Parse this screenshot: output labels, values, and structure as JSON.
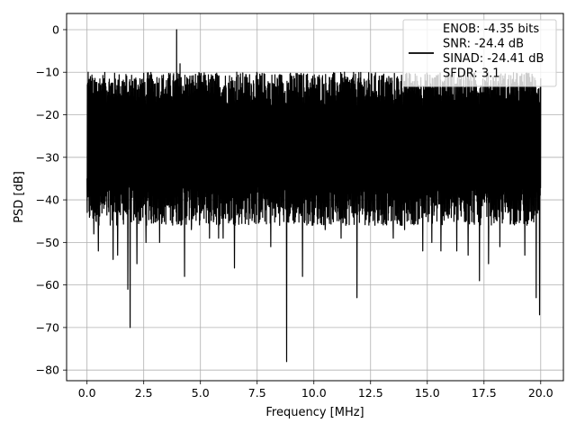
{
  "chart_data": {
    "type": "line",
    "title": "",
    "xlabel": "Frequency [MHz]",
    "ylabel": "PSD [dB]",
    "xlim": [
      -0.9,
      21.0
    ],
    "ylim": [
      -82.5,
      3.8
    ],
    "xticks": [
      0.0,
      2.5,
      5.0,
      7.5,
      10.0,
      12.5,
      15.0,
      17.5,
      20.0
    ],
    "xtick_labels": [
      "0.0",
      "2.5",
      "5.0",
      "7.5",
      "10.0",
      "12.5",
      "15.0",
      "17.5",
      "20.0"
    ],
    "yticks": [
      0,
      -10,
      -20,
      -30,
      -40,
      -50,
      -60,
      -70,
      -80
    ],
    "ytick_labels": [
      "0",
      "−10",
      "−20",
      "−30",
      "−40",
      "−50",
      "−60",
      "−70",
      "−80"
    ],
    "grid": true,
    "legend_position": "top-right",
    "line_color": "#000000",
    "series": [
      {
        "name": "ENOB: -4.35 bits\nSNR: -24.4 dB\nSINAD: -24.41 dB\nSFDR: 3.1",
        "legend_lines": [
          "ENOB: -4.35 bits",
          "SNR: -24.4 dB",
          "SINAD: -24.41 dB",
          "SFDR: 3.1"
        ],
        "noise_floor_band": {
          "x_start": 0.0,
          "x_end": 20.0,
          "upper_db": -14,
          "lower_db": -41
        },
        "peaks": [
          {
            "x": 0.0,
            "y": -6
          },
          {
            "x": 0.05,
            "y": -10
          },
          {
            "x": 3.95,
            "y": 0
          },
          {
            "x": 4.1,
            "y": -8
          },
          {
            "x": 4.3,
            "y": -5
          },
          {
            "x": 6.6,
            "y": -10
          },
          {
            "x": 16.6,
            "y": -10
          }
        ],
        "dips": [
          {
            "x": 0.3,
            "y": -48
          },
          {
            "x": 0.5,
            "y": -52
          },
          {
            "x": 1.15,
            "y": -54
          },
          {
            "x": 1.35,
            "y": -53
          },
          {
            "x": 1.8,
            "y": -61
          },
          {
            "x": 1.9,
            "y": -70
          },
          {
            "x": 2.2,
            "y": -55
          },
          {
            "x": 2.6,
            "y": -50
          },
          {
            "x": 3.2,
            "y": -50
          },
          {
            "x": 4.3,
            "y": -58
          },
          {
            "x": 4.6,
            "y": -47
          },
          {
            "x": 5.4,
            "y": -49
          },
          {
            "x": 5.8,
            "y": -49
          },
          {
            "x": 6.0,
            "y": -49
          },
          {
            "x": 6.5,
            "y": -56
          },
          {
            "x": 8.1,
            "y": -51
          },
          {
            "x": 8.8,
            "y": -78
          },
          {
            "x": 9.5,
            "y": -58
          },
          {
            "x": 10.5,
            "y": -47
          },
          {
            "x": 11.2,
            "y": -49
          },
          {
            "x": 11.9,
            "y": -63
          },
          {
            "x": 13.5,
            "y": -49
          },
          {
            "x": 14.0,
            "y": -47
          },
          {
            "x": 14.8,
            "y": -52
          },
          {
            "x": 15.2,
            "y": -50
          },
          {
            "x": 15.6,
            "y": -52
          },
          {
            "x": 16.3,
            "y": -52
          },
          {
            "x": 16.8,
            "y": -53
          },
          {
            "x": 17.3,
            "y": -59
          },
          {
            "x": 17.7,
            "y": -55
          },
          {
            "x": 18.2,
            "y": -51
          },
          {
            "x": 19.3,
            "y": -53
          },
          {
            "x": 19.8,
            "y": -63
          },
          {
            "x": 19.95,
            "y": -67
          }
        ]
      }
    ]
  }
}
